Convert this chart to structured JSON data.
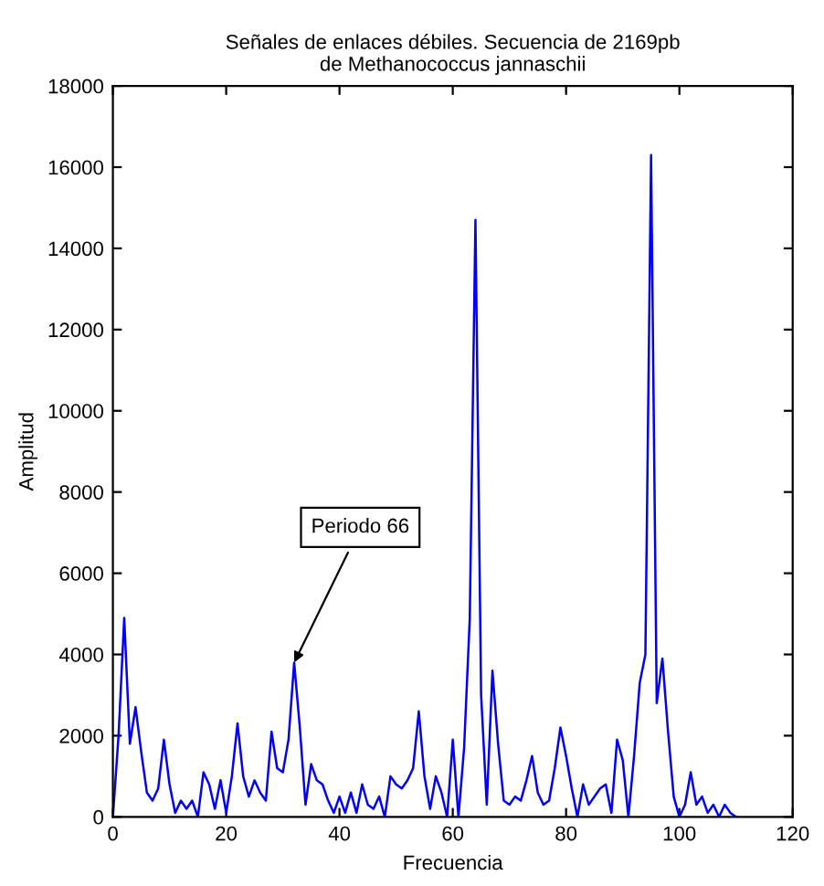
{
  "chart_data": {
    "type": "line",
    "title": "Señales de enlaces débiles. Secuencia de 2169pb\nde Methanococcus jannaschii",
    "xlabel": "Frecuencia",
    "ylabel": "Amplitud",
    "x": [
      0,
      1,
      2,
      3,
      4,
      5,
      6,
      7,
      8,
      9,
      10,
      11,
      12,
      13,
      14,
      15,
      16,
      17,
      18,
      19,
      20,
      21,
      22,
      23,
      24,
      25,
      26,
      27,
      28,
      29,
      30,
      31,
      32,
      33,
      34,
      35,
      36,
      37,
      38,
      39,
      40,
      41,
      42,
      43,
      44,
      45,
      46,
      47,
      48,
      49,
      50,
      51,
      52,
      53,
      54,
      55,
      56,
      57,
      58,
      59,
      60,
      61,
      62,
      63,
      64,
      65,
      66,
      67,
      68,
      69,
      70,
      71,
      72,
      73,
      74,
      75,
      76,
      77,
      78,
      79,
      80,
      81,
      82,
      83,
      84,
      85,
      86,
      87,
      88,
      89,
      90,
      91,
      92,
      93,
      94,
      95,
      96,
      97,
      98,
      99,
      100,
      101,
      102,
      103,
      104,
      105,
      106,
      107,
      108,
      109,
      110
    ],
    "series": [
      {
        "color": "#0000ff",
        "values": [
          0,
          2000,
          4900,
          1800,
          2700,
          1600,
          600,
          400,
          700,
          1900,
          800,
          100,
          400,
          200,
          400,
          0,
          1100,
          800,
          200,
          900,
          100,
          1000,
          2300,
          1000,
          500,
          900,
          600,
          400,
          2100,
          1200,
          1100,
          1900,
          3800,
          2200,
          300,
          1300,
          900,
          800,
          400,
          100,
          500,
          100,
          600,
          100,
          800,
          300,
          200,
          500,
          0,
          1000,
          800,
          700,
          900,
          1200,
          2600,
          1000,
          200,
          1000,
          600,
          0,
          1900,
          0,
          1700,
          4900,
          14700,
          3000,
          300,
          3600,
          1800,
          400,
          300,
          500,
          400,
          900,
          1500,
          600,
          300,
          400,
          1200,
          2200,
          1500,
          700,
          0,
          800,
          300,
          500,
          700,
          800,
          100,
          1900,
          1400,
          0,
          1500,
          3300,
          4000,
          16300,
          2800,
          3900,
          2100,
          500,
          0,
          300,
          1100,
          300,
          500,
          100,
          300,
          0,
          300,
          100,
          0
        ]
      }
    ],
    "xlim": [
      0,
      120
    ],
    "ylim": [
      0,
      18000
    ],
    "xticks": [
      0,
      20,
      40,
      60,
      80,
      100,
      120
    ],
    "yticks": [
      0,
      2000,
      4000,
      6000,
      8000,
      10000,
      12000,
      14000,
      16000,
      18000
    ],
    "annotations": [
      {
        "text": "Periodo 66",
        "x": 32,
        "y": 3800
      }
    ],
    "grid": false,
    "legend": false,
    "marker": "none",
    "line_style": "solid"
  }
}
